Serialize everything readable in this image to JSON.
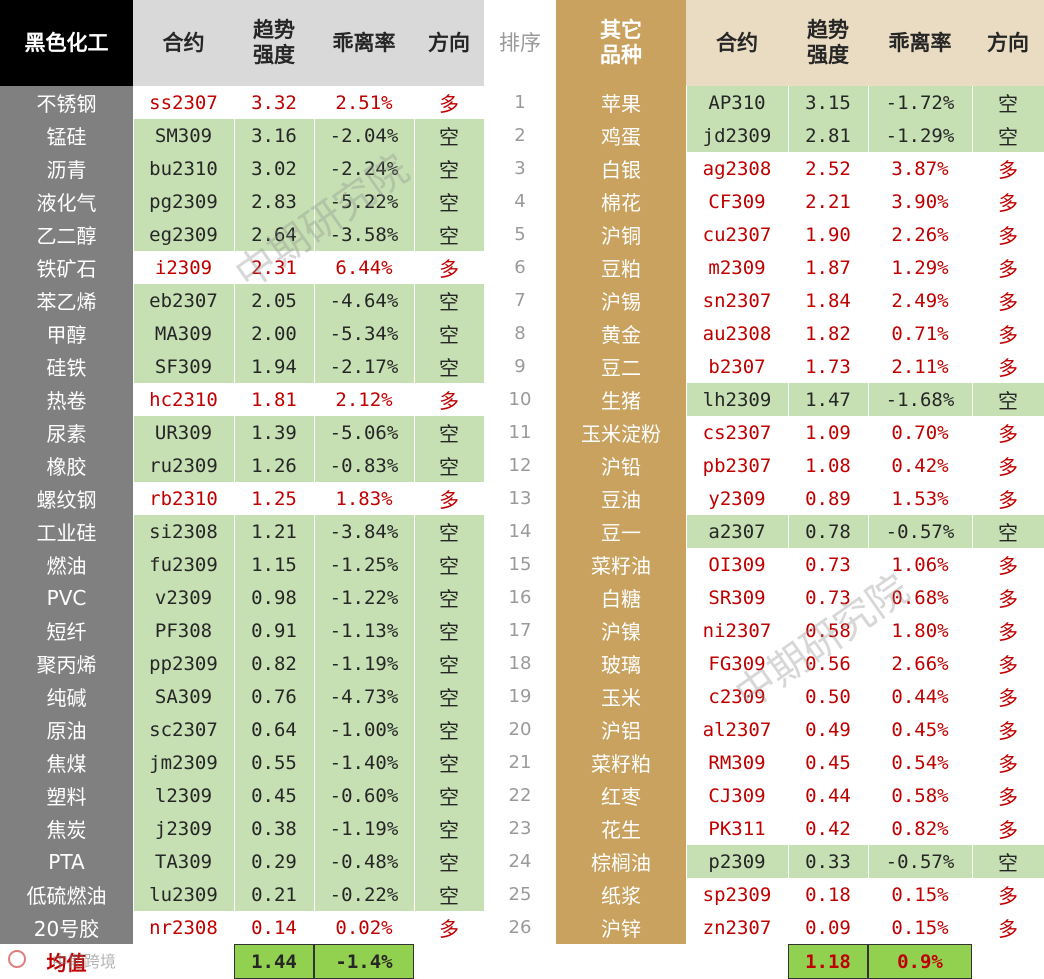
{
  "colors": {
    "green": "#c6e0b4",
    "white": "#ffffff",
    "dark_gray": "#808080",
    "light_gray": "#d9d9d9",
    "gold": "#c8a25e",
    "tan": "#eadcc2",
    "black": "#000000",
    "red_text": "#c00000",
    "dark_text": "#262626",
    "avg_green": "#92d050"
  },
  "header": {
    "left_category": "黑色化工",
    "left_contract": "合约",
    "left_strength": "趋势\n强度",
    "left_deviation": "乖离率",
    "left_direction": "方向",
    "rank": "排序",
    "right_category": "其它\n品种",
    "right_contract": "合约",
    "right_strength": "趋势\n强度",
    "right_deviation": "乖离率",
    "right_direction": "方向"
  },
  "left_rows": [
    {
      "name": "不锈钢",
      "contract": "ss2307",
      "strength": "3.32",
      "deviation": "2.51%",
      "direction": "多"
    },
    {
      "name": "锰硅",
      "contract": "SM309",
      "strength": "3.16",
      "deviation": "-2.04%",
      "direction": "空"
    },
    {
      "name": "沥青",
      "contract": "bu2310",
      "strength": "3.02",
      "deviation": "-2.24%",
      "direction": "空"
    },
    {
      "name": "液化气",
      "contract": "pg2309",
      "strength": "2.83",
      "deviation": "-5.22%",
      "direction": "空"
    },
    {
      "name": "乙二醇",
      "contract": "eg2309",
      "strength": "2.64",
      "deviation": "-3.58%",
      "direction": "空"
    },
    {
      "name": "铁矿石",
      "contract": "i2309",
      "strength": "2.31",
      "deviation": "6.44%",
      "direction": "多"
    },
    {
      "name": "苯乙烯",
      "contract": "eb2307",
      "strength": "2.05",
      "deviation": "-4.64%",
      "direction": "空"
    },
    {
      "name": "甲醇",
      "contract": "MA309",
      "strength": "2.00",
      "deviation": "-5.34%",
      "direction": "空"
    },
    {
      "name": "硅铁",
      "contract": "SF309",
      "strength": "1.94",
      "deviation": "-2.17%",
      "direction": "空"
    },
    {
      "name": "热卷",
      "contract": "hc2310",
      "strength": "1.81",
      "deviation": "2.12%",
      "direction": "多"
    },
    {
      "name": "尿素",
      "contract": "UR309",
      "strength": "1.39",
      "deviation": "-5.06%",
      "direction": "空"
    },
    {
      "name": "橡胶",
      "contract": "ru2309",
      "strength": "1.26",
      "deviation": "-0.83%",
      "direction": "空"
    },
    {
      "name": "螺纹钢",
      "contract": "rb2310",
      "strength": "1.25",
      "deviation": "1.83%",
      "direction": "多"
    },
    {
      "name": "工业硅",
      "contract": "si2308",
      "strength": "1.21",
      "deviation": "-3.84%",
      "direction": "空"
    },
    {
      "name": "燃油",
      "contract": "fu2309",
      "strength": "1.15",
      "deviation": "-1.25%",
      "direction": "空"
    },
    {
      "name": "PVC",
      "contract": "v2309",
      "strength": "0.98",
      "deviation": "-1.22%",
      "direction": "空"
    },
    {
      "name": "短纤",
      "contract": "PF308",
      "strength": "0.91",
      "deviation": "-1.13%",
      "direction": "空"
    },
    {
      "name": "聚丙烯",
      "contract": "pp2309",
      "strength": "0.82",
      "deviation": "-1.19%",
      "direction": "空"
    },
    {
      "name": "纯碱",
      "contract": "SA309",
      "strength": "0.76",
      "deviation": "-4.73%",
      "direction": "空"
    },
    {
      "name": "原油",
      "contract": "sc2307",
      "strength": "0.64",
      "deviation": "-1.00%",
      "direction": "空"
    },
    {
      "name": "焦煤",
      "contract": "jm2309",
      "strength": "0.55",
      "deviation": "-1.40%",
      "direction": "空"
    },
    {
      "name": "塑料",
      "contract": "l2309",
      "strength": "0.45",
      "deviation": "-0.60%",
      "direction": "空"
    },
    {
      "name": "焦炭",
      "contract": "j2309",
      "strength": "0.38",
      "deviation": "-1.19%",
      "direction": "空"
    },
    {
      "name": "PTA",
      "contract": "TA309",
      "strength": "0.29",
      "deviation": "-0.48%",
      "direction": "空"
    },
    {
      "name": "低硫燃油",
      "contract": "lu2309",
      "strength": "0.21",
      "deviation": "-0.22%",
      "direction": "空"
    },
    {
      "name": "20号胶",
      "contract": "nr2308",
      "strength": "0.14",
      "deviation": "0.02%",
      "direction": "多"
    }
  ],
  "right_rows": [
    {
      "rank": "1",
      "name": "苹果",
      "contract": "AP310",
      "strength": "3.15",
      "deviation": "-1.72%",
      "direction": "空"
    },
    {
      "rank": "2",
      "name": "鸡蛋",
      "contract": "jd2309",
      "strength": "2.81",
      "deviation": "-1.29%",
      "direction": "空"
    },
    {
      "rank": "3",
      "name": "白银",
      "contract": "ag2308",
      "strength": "2.52",
      "deviation": "3.87%",
      "direction": "多"
    },
    {
      "rank": "4",
      "name": "棉花",
      "contract": "CF309",
      "strength": "2.21",
      "deviation": "3.90%",
      "direction": "多"
    },
    {
      "rank": "5",
      "name": "沪铜",
      "contract": "cu2307",
      "strength": "1.90",
      "deviation": "2.26%",
      "direction": "多"
    },
    {
      "rank": "6",
      "name": "豆粕",
      "contract": "m2309",
      "strength": "1.87",
      "deviation": "1.29%",
      "direction": "多"
    },
    {
      "rank": "7",
      "name": "沪锡",
      "contract": "sn2307",
      "strength": "1.84",
      "deviation": "2.49%",
      "direction": "多"
    },
    {
      "rank": "8",
      "name": "黄金",
      "contract": "au2308",
      "strength": "1.82",
      "deviation": "0.71%",
      "direction": "多"
    },
    {
      "rank": "9",
      "name": "豆二",
      "contract": "b2307",
      "strength": "1.73",
      "deviation": "2.11%",
      "direction": "多"
    },
    {
      "rank": "10",
      "name": "生猪",
      "contract": "lh2309",
      "strength": "1.47",
      "deviation": "-1.68%",
      "direction": "空"
    },
    {
      "rank": "11",
      "name": "玉米淀粉",
      "contract": "cs2307",
      "strength": "1.09",
      "deviation": "0.70%",
      "direction": "多"
    },
    {
      "rank": "12",
      "name": "沪铅",
      "contract": "pb2307",
      "strength": "1.08",
      "deviation": "0.42%",
      "direction": "多"
    },
    {
      "rank": "13",
      "name": "豆油",
      "contract": "y2309",
      "strength": "0.89",
      "deviation": "1.53%",
      "direction": "多"
    },
    {
      "rank": "14",
      "name": "豆一",
      "contract": "a2307",
      "strength": "0.78",
      "deviation": "-0.57%",
      "direction": "空"
    },
    {
      "rank": "15",
      "name": "菜籽油",
      "contract": "OI309",
      "strength": "0.73",
      "deviation": "1.06%",
      "direction": "多"
    },
    {
      "rank": "16",
      "name": "白糖",
      "contract": "SR309",
      "strength": "0.73",
      "deviation": "0.68%",
      "direction": "多"
    },
    {
      "rank": "17",
      "name": "沪镍",
      "contract": "ni2307",
      "strength": "0.58",
      "deviation": "1.80%",
      "direction": "多"
    },
    {
      "rank": "18",
      "name": "玻璃",
      "contract": "FG309",
      "strength": "0.56",
      "deviation": "2.66%",
      "direction": "多"
    },
    {
      "rank": "19",
      "name": "玉米",
      "contract": "c2309",
      "strength": "0.50",
      "deviation": "0.44%",
      "direction": "多"
    },
    {
      "rank": "20",
      "name": "沪铝",
      "contract": "al2307",
      "strength": "0.49",
      "deviation": "0.45%",
      "direction": "多"
    },
    {
      "rank": "21",
      "name": "菜籽粕",
      "contract": "RM309",
      "strength": "0.45",
      "deviation": "0.54%",
      "direction": "多"
    },
    {
      "rank": "22",
      "name": "红枣",
      "contract": "CJ309",
      "strength": "0.44",
      "deviation": "0.58%",
      "direction": "多"
    },
    {
      "rank": "23",
      "name": "花生",
      "contract": "PK311",
      "strength": "0.42",
      "deviation": "0.82%",
      "direction": "多"
    },
    {
      "rank": "24",
      "name": "棕榈油",
      "contract": "p2309",
      "strength": "0.33",
      "deviation": "-0.57%",
      "direction": "空"
    },
    {
      "rank": "25",
      "name": "纸浆",
      "contract": "sp2309",
      "strength": "0.18",
      "deviation": "0.15%",
      "direction": "多"
    },
    {
      "rank": "26",
      "name": "沪锌",
      "contract": "zn2307",
      "strength": "0.09",
      "deviation": "0.15%",
      "direction": "多"
    }
  ],
  "footer": {
    "label": "均值",
    "left_avg_strength": "1.44",
    "left_avg_deviation": "-1.4%",
    "right_avg_strength": "1.18",
    "right_avg_deviation": "0.9%"
  },
  "watermarks": [
    "中期研究院",
    "中期研究院"
  ],
  "source_logo_text": "中期跨境"
}
